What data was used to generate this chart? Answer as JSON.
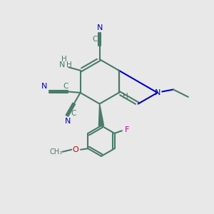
{
  "bg_color": "#e8e8e8",
  "bond_color": "#4a7a6a",
  "N_color": "#0000cc",
  "O_color": "#cc0000",
  "F_color": "#cc0099",
  "H_color": "#4a7a6a",
  "line_width": 1.5,
  "figsize": [
    3.0,
    3.0
  ],
  "dpi": 100,
  "xlim": [
    0,
    10
  ],
  "ylim": [
    0,
    10
  ]
}
